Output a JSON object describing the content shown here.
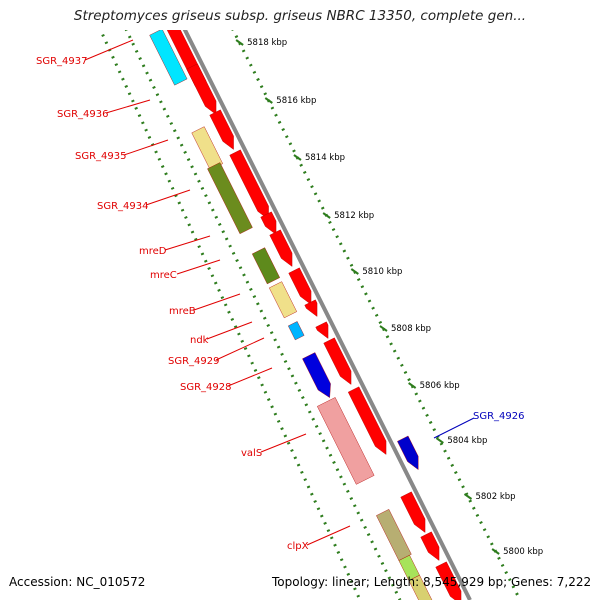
{
  "title": "Streptomyces griseus subsp. griseus NBRC 13350, complete gen...",
  "footer": {
    "accession": "Accession: NC_010572",
    "topology": "Topology: linear; Length: 8,545,929 bp; Genes: 7,222"
  },
  "colors": {
    "label_red": "#e00000",
    "label_blue": "#0000bb",
    "forward_gene": "#ff0000",
    "backbone": "#888888",
    "tick_green": "#2e7d1e"
  },
  "kbp_ticks": [
    "5818 kbp",
    "5816 kbp",
    "5814 kbp",
    "5812 kbp",
    "5810 kbp",
    "5808 kbp",
    "5806 kbp",
    "5804 kbp",
    "5802 kbp",
    "5800 kbp"
  ],
  "gene_labels": [
    {
      "text": "SGR_4937",
      "color": "red"
    },
    {
      "text": "SGR_4936",
      "color": "red"
    },
    {
      "text": "SGR_4935",
      "color": "red"
    },
    {
      "text": "SGR_4934",
      "color": "red"
    },
    {
      "text": "mreD",
      "color": "red"
    },
    {
      "text": "mreC",
      "color": "red"
    },
    {
      "text": "mreB",
      "color": "red"
    },
    {
      "text": "ndk",
      "color": "red"
    },
    {
      "text": "SGR_4929",
      "color": "red"
    },
    {
      "text": "SGR_4928",
      "color": "red"
    },
    {
      "text": "valS",
      "color": "red"
    },
    {
      "text": "clpX",
      "color": "red"
    },
    {
      "text": "SGR_4926",
      "color": "blue"
    }
  ]
}
